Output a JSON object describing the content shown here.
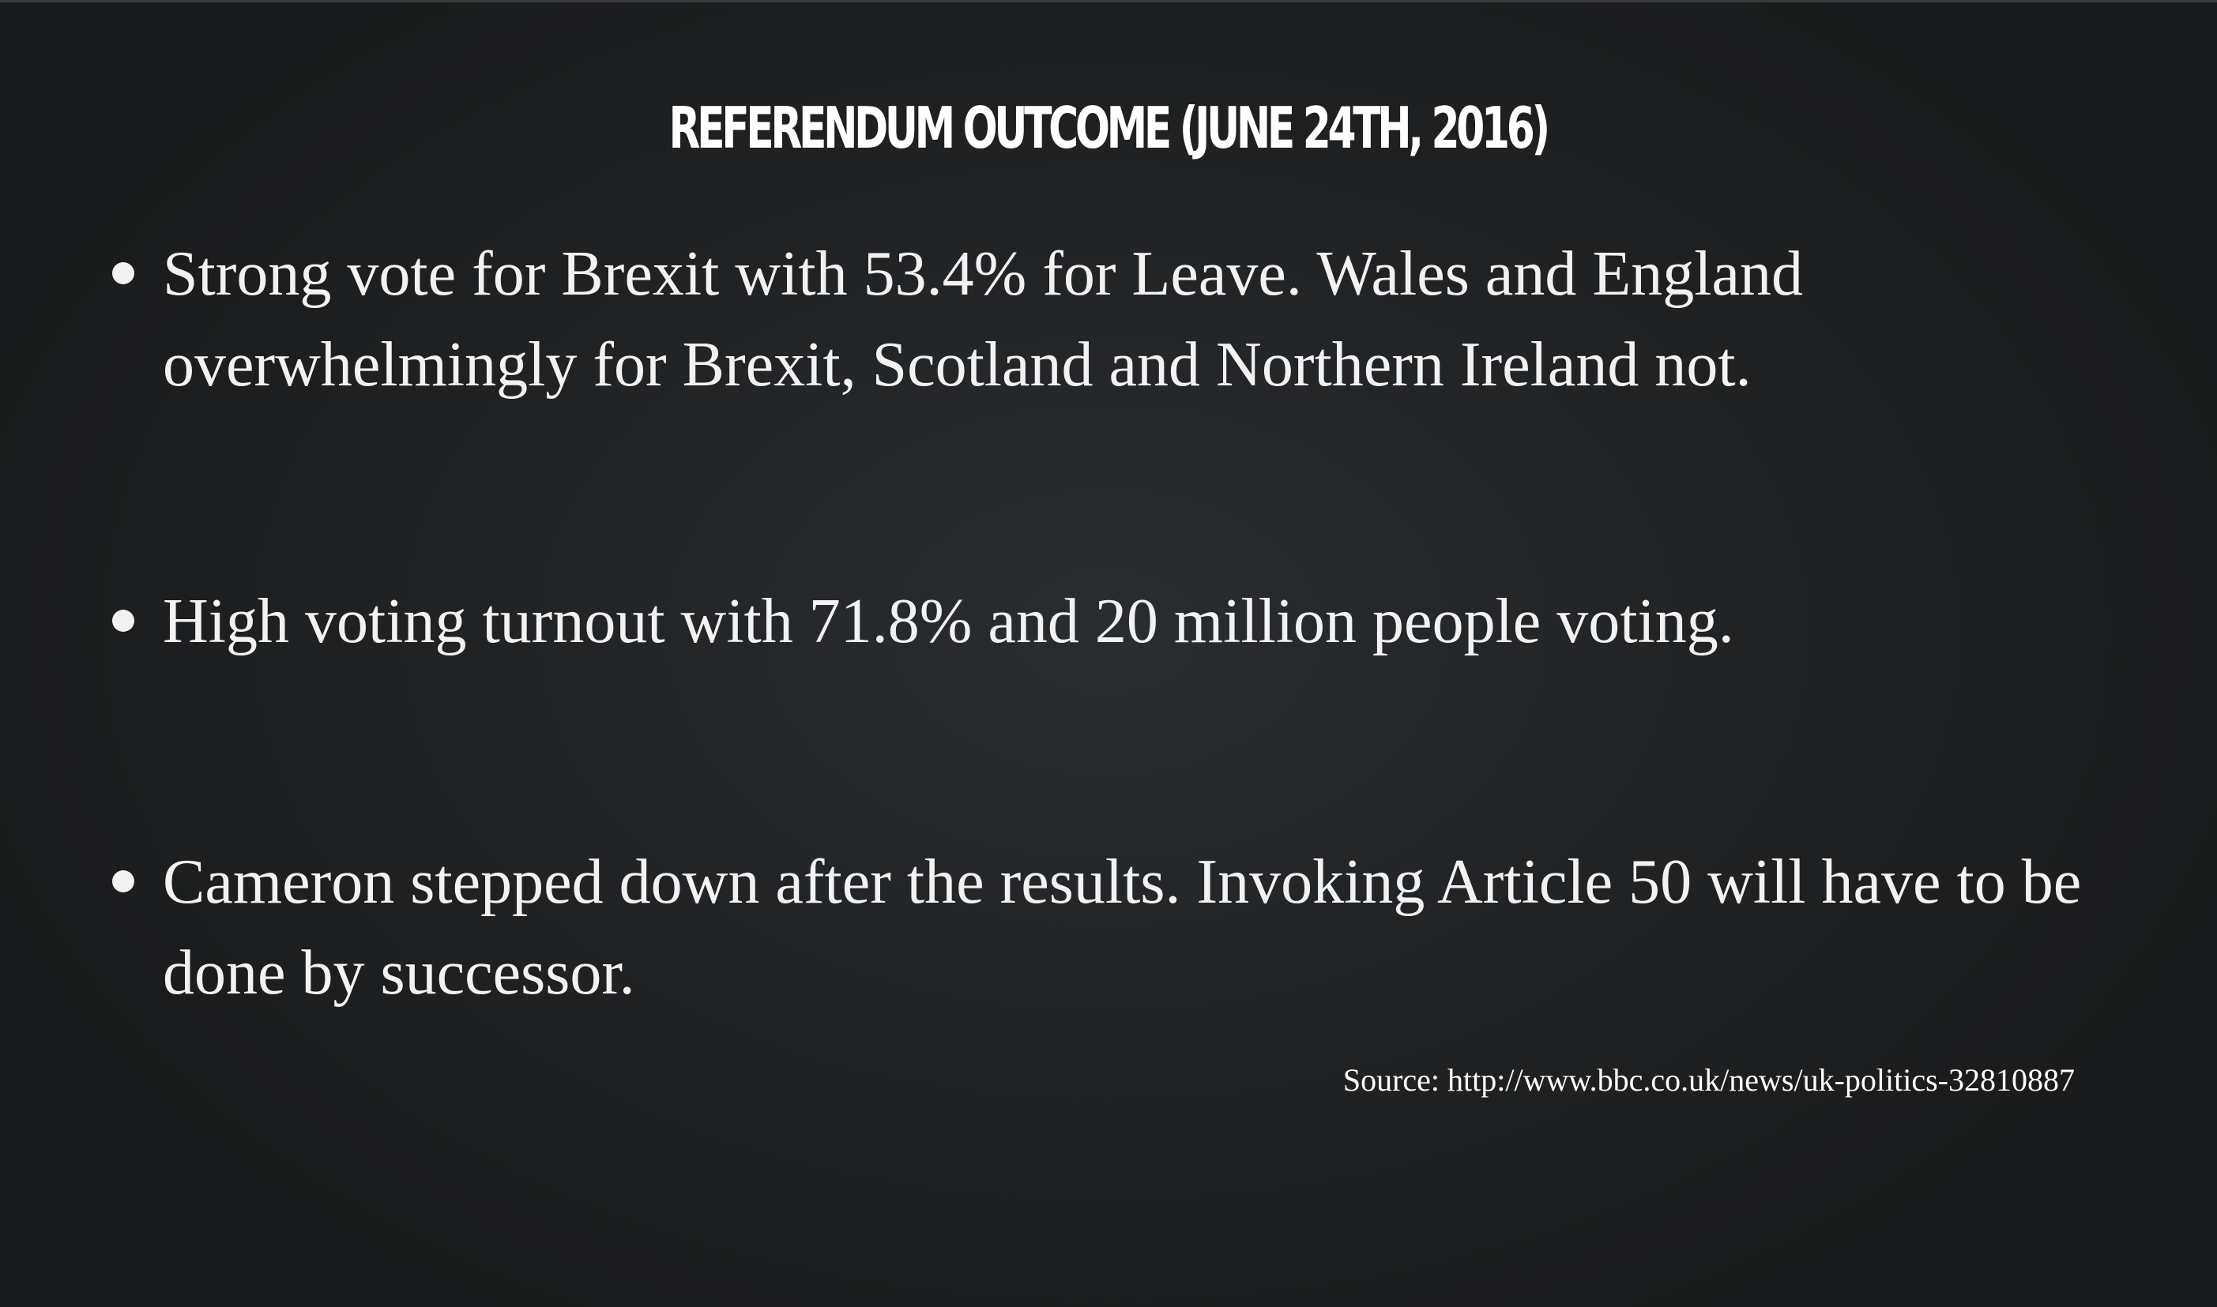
{
  "slide": {
    "title": "REFERENDUM OUTCOME (JUNE 24TH, 2016)",
    "bullets": [
      "Strong vote for Brexit with 53.4% for Leave. Wales and England overwhelmingly for Brexit, Scotland and Northern Ireland not.",
      "High voting turnout with 71.8% and 20 million people voting.",
      "Cameron stepped down after the results. Invoking Article 50 will have to be done by successor."
    ],
    "source": "Source: http://www.bbc.co.uk/news/uk-politics-32810887"
  },
  "colors": {
    "background": "#202224",
    "text": "#f2f2f2"
  }
}
